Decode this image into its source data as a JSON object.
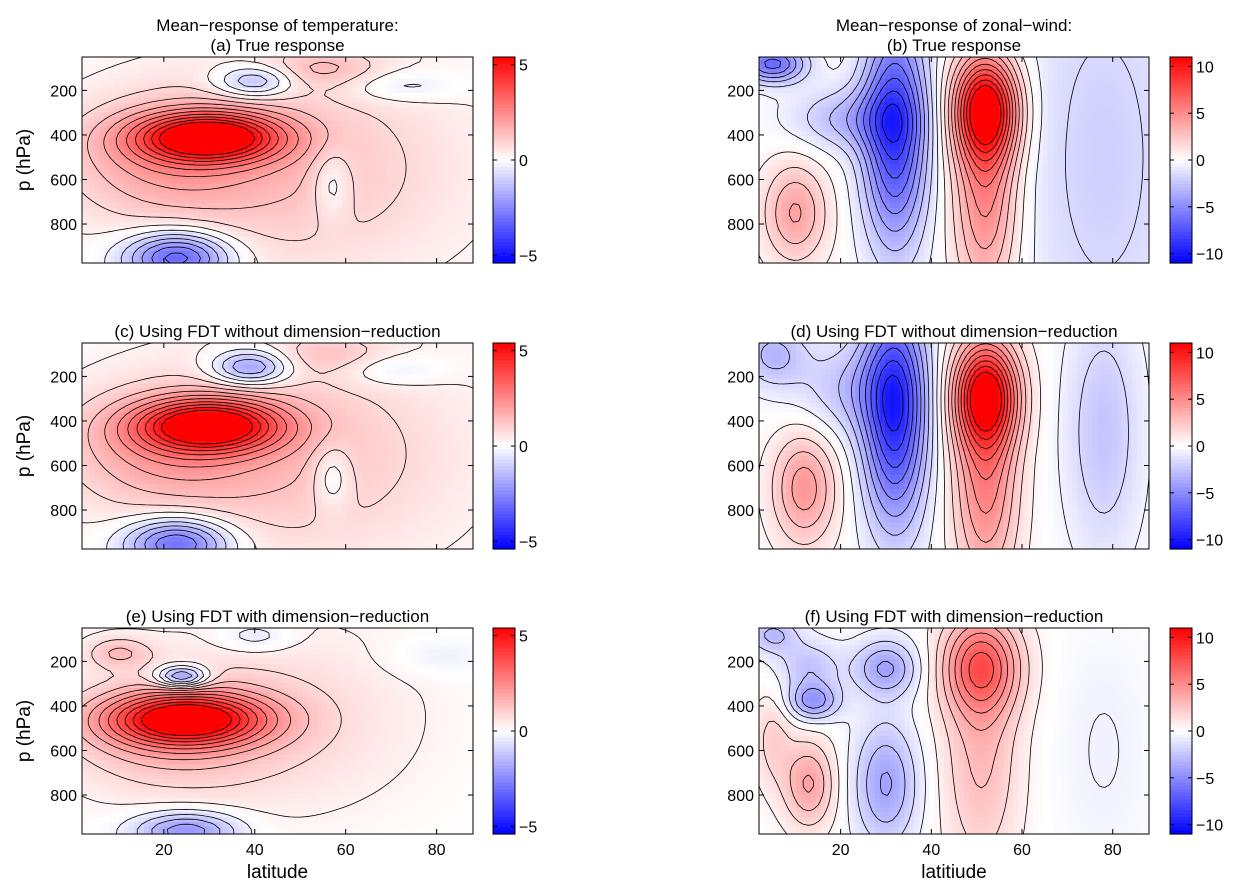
{
  "figure": {
    "xlabels": [
      "latitude",
      "latitiude"
    ],
    "colors": {
      "neg": "#0000ff",
      "zero": "#ffffff",
      "pos": "#ff0000",
      "contour": "#000000"
    }
  },
  "chart_data": [
    {
      "id": "a",
      "type": "heatmap",
      "variable": "temperature",
      "title_lines": [
        "Mean−response of temperature:",
        "(a) True response"
      ],
      "ylabel": "p (hPa)",
      "xlabel": "",
      "xlim": [
        2,
        88
      ],
      "ylim": [
        975,
        50
      ],
      "y_reversed": true,
      "xticks": [],
      "yticks": [
        200,
        400,
        600,
        800
      ],
      "ytick_labels": [
        "200",
        "400",
        "600",
        "800"
      ],
      "clim": [
        -5.4,
        5.4
      ],
      "cbar_ticks": [
        5,
        0,
        -5
      ],
      "cbar_tick_labels": [
        "5",
        "0",
        "−5"
      ],
      "features": [
        {
          "x": 30,
          "y": 410,
          "amp": 5.2,
          "sx": 11,
          "sy": 75
        },
        {
          "x": 20,
          "y": 500,
          "amp": 1.6,
          "sx": 16,
          "sy": 190
        },
        {
          "x": 50,
          "y": 550,
          "amp": 1.2,
          "sx": 26,
          "sy": 350
        },
        {
          "x": 40,
          "y": 160,
          "amp": -2.0,
          "sx": 6,
          "sy": 50
        },
        {
          "x": 23,
          "y": 950,
          "amp": -3.6,
          "sx": 8,
          "sy": 80
        },
        {
          "x": 55,
          "y": 100,
          "amp": 1.0,
          "sx": 9,
          "sy": 60
        },
        {
          "x": 72,
          "y": 180,
          "amp": -0.8,
          "sx": 9,
          "sy": 50
        },
        {
          "x": 57,
          "y": 620,
          "amp": -1.0,
          "sx": 3,
          "sy": 110
        }
      ]
    },
    {
      "id": "b",
      "type": "heatmap",
      "variable": "zonal-wind",
      "title_lines": [
        "Mean−response of zonal−wind:",
        "(b) True response"
      ],
      "ylabel": "",
      "xlabel": "",
      "xlim": [
        2,
        88
      ],
      "ylim": [
        975,
        50
      ],
      "y_reversed": true,
      "xticks": [],
      "yticks": [
        200,
        400,
        600,
        800
      ],
      "ytick_labels": [
        "200",
        "400",
        "600",
        "800"
      ],
      "clim": [
        -11,
        11
      ],
      "cbar_ticks": [
        10,
        5,
        0,
        -5,
        -10
      ],
      "cbar_tick_labels": [
        "10",
        "5",
        "0",
        "−5",
        "−10"
      ],
      "features": [
        {
          "x": 32,
          "y": 380,
          "amp": -8.5,
          "sx": 5,
          "sy": 360
        },
        {
          "x": 52,
          "y": 280,
          "amp": 10.5,
          "sx": 5,
          "sy": 160
        },
        {
          "x": 52,
          "y": 650,
          "amp": 5.5,
          "sx": 5,
          "sy": 350
        },
        {
          "x": 10,
          "y": 750,
          "amp": 4.0,
          "sx": 5,
          "sy": 160
        },
        {
          "x": 5,
          "y": 80,
          "amp": -6.5,
          "sx": 5,
          "sy": 60
        },
        {
          "x": 22,
          "y": 330,
          "amp": -3.0,
          "sx": 9,
          "sy": 100
        },
        {
          "x": 78,
          "y": 500,
          "amp": -2.0,
          "sx": 14,
          "sy": 800
        }
      ]
    },
    {
      "id": "c",
      "type": "heatmap",
      "variable": "temperature",
      "title_lines": [
        "(c) Using FDT without dimension−reduction"
      ],
      "ylabel": "p (hPa)",
      "xlabel": "",
      "xlim": [
        2,
        88
      ],
      "ylim": [
        975,
        50
      ],
      "y_reversed": true,
      "xticks": [],
      "yticks": [
        200,
        400,
        600,
        800
      ],
      "ytick_labels": [
        "200",
        "400",
        "600",
        "800"
      ],
      "clim": [
        -5.4,
        5.4
      ],
      "cbar_ticks": [
        5,
        0,
        -5
      ],
      "cbar_tick_labels": [
        "5",
        "0",
        "−5"
      ],
      "features": [
        {
          "x": 30,
          "y": 420,
          "amp": 5.0,
          "sx": 11,
          "sy": 80
        },
        {
          "x": 20,
          "y": 520,
          "amp": 1.6,
          "sx": 16,
          "sy": 190
        },
        {
          "x": 50,
          "y": 550,
          "amp": 1.2,
          "sx": 26,
          "sy": 350
        },
        {
          "x": 39,
          "y": 160,
          "amp": -2.6,
          "sx": 6,
          "sy": 55
        },
        {
          "x": 23,
          "y": 950,
          "amp": -3.4,
          "sx": 8,
          "sy": 80
        },
        {
          "x": 57,
          "y": 100,
          "amp": 0.8,
          "sx": 9,
          "sy": 60
        },
        {
          "x": 70,
          "y": 170,
          "amp": -0.8,
          "sx": 8,
          "sy": 50
        },
        {
          "x": 57,
          "y": 650,
          "amp": -1.1,
          "sx": 3,
          "sy": 100
        }
      ]
    },
    {
      "id": "d",
      "type": "heatmap",
      "variable": "zonal-wind",
      "title_lines": [
        "(d) Using FDT without dimension−reduction"
      ],
      "ylabel": "",
      "xlabel": "",
      "xlim": [
        2,
        88
      ],
      "ylim": [
        975,
        50
      ],
      "y_reversed": true,
      "xticks": [],
      "yticks": [
        200,
        400,
        600,
        800
      ],
      "ytick_labels": [
        "200",
        "400",
        "600",
        "800"
      ],
      "clim": [
        -11,
        11
      ],
      "cbar_ticks": [
        10,
        5,
        0,
        -5,
        -10
      ],
      "cbar_tick_labels": [
        "10",
        "5",
        "0",
        "−5",
        "−10"
      ],
      "features": [
        {
          "x": 32,
          "y": 360,
          "amp": -9.0,
          "sx": 5,
          "sy": 360
        },
        {
          "x": 52,
          "y": 280,
          "amp": 10.0,
          "sx": 5,
          "sy": 160
        },
        {
          "x": 52,
          "y": 650,
          "amp": 5.5,
          "sx": 5,
          "sy": 350
        },
        {
          "x": 12,
          "y": 700,
          "amp": 4.5,
          "sx": 5,
          "sy": 180
        },
        {
          "x": 5,
          "y": 100,
          "amp": -3.0,
          "sx": 5,
          "sy": 100
        },
        {
          "x": 22,
          "y": 260,
          "amp": -2.5,
          "sx": 9,
          "sy": 150
        },
        {
          "x": 78,
          "y": 450,
          "amp": -2.5,
          "sx": 6,
          "sy": 400
        }
      ]
    },
    {
      "id": "e",
      "type": "heatmap",
      "variable": "temperature",
      "title_lines": [
        "(e) Using FDT with dimension−reduction"
      ],
      "ylabel": "p (hPa)",
      "xlabel": "latitude",
      "xlim": [
        2,
        88
      ],
      "ylim": [
        975,
        50
      ],
      "y_reversed": true,
      "xticks": [
        20,
        40,
        60,
        80
      ],
      "yticks": [
        200,
        400,
        600,
        800
      ],
      "ytick_labels": [
        "200",
        "400",
        "600",
        "800"
      ],
      "clim": [
        -5.4,
        5.4
      ],
      "cbar_ticks": [
        5,
        0,
        -5
      ],
      "cbar_tick_labels": [
        "5",
        "0",
        "−5"
      ],
      "features": [
        {
          "x": 25,
          "y": 460,
          "amp": 5.0,
          "sx": 12,
          "sy": 80
        },
        {
          "x": 20,
          "y": 520,
          "amp": 1.4,
          "sx": 16,
          "sy": 180
        },
        {
          "x": 45,
          "y": 450,
          "amp": 0.8,
          "sx": 22,
          "sy": 300
        },
        {
          "x": 24,
          "y": 270,
          "amp": -3.0,
          "sx": 4,
          "sy": 35
        },
        {
          "x": 10,
          "y": 160,
          "amp": 1.2,
          "sx": 5,
          "sy": 50
        },
        {
          "x": 25,
          "y": 960,
          "amp": -2.4,
          "sx": 8,
          "sy": 60
        },
        {
          "x": 40,
          "y": 90,
          "amp": -0.8,
          "sx": 6,
          "sy": 50
        },
        {
          "x": 80,
          "y": 180,
          "amp": -0.4,
          "sx": 8,
          "sy": 60
        }
      ]
    },
    {
      "id": "f",
      "type": "heatmap",
      "variable": "zonal-wind",
      "title_lines": [
        "(f) Using FDT with dimension−reduction"
      ],
      "ylabel": "",
      "xlabel": "latitiude",
      "xlim": [
        2,
        88
      ],
      "ylim": [
        975,
        50
      ],
      "y_reversed": true,
      "xticks": [
        20,
        40,
        60,
        80
      ],
      "yticks": [
        200,
        400,
        600,
        800
      ],
      "ytick_labels": [
        "200",
        "400",
        "600",
        "800"
      ],
      "clim": [
        -11,
        11
      ],
      "cbar_ticks": [
        10,
        5,
        0,
        -5,
        -10
      ],
      "cbar_tick_labels": [
        "10",
        "5",
        "0",
        "−5",
        "−10"
      ],
      "features": [
        {
          "x": 30,
          "y": 750,
          "amp": -4.0,
          "sx": 5,
          "sy": 200
        },
        {
          "x": 14,
          "y": 380,
          "amp": -4.5,
          "sx": 4,
          "sy": 60
        },
        {
          "x": 30,
          "y": 230,
          "amp": -4.0,
          "sx": 5,
          "sy": 90
        },
        {
          "x": 13,
          "y": 220,
          "amp": -2.5,
          "sx": 5,
          "sy": 80
        },
        {
          "x": 5,
          "y": 80,
          "amp": -3.0,
          "sx": 4,
          "sy": 60
        },
        {
          "x": 13,
          "y": 750,
          "amp": 4.0,
          "sx": 4,
          "sy": 140
        },
        {
          "x": 5,
          "y": 550,
          "amp": 2.0,
          "sx": 3,
          "sy": 150
        },
        {
          "x": 51,
          "y": 220,
          "amp": 6.0,
          "sx": 6,
          "sy": 150
        },
        {
          "x": 51,
          "y": 600,
          "amp": 3.0,
          "sx": 6,
          "sy": 400
        },
        {
          "x": 78,
          "y": 600,
          "amp": -0.6,
          "sx": 8,
          "sy": 400
        }
      ]
    }
  ]
}
